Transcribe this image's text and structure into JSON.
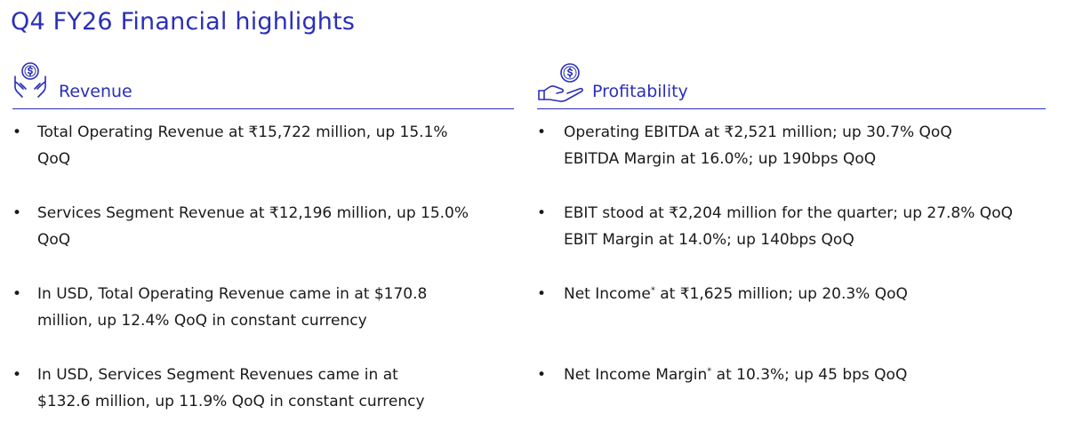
{
  "page_title": "Q4 FY26 Financial highlights",
  "revenue": {
    "icon": "money-hands-icon",
    "heading": "Revenue",
    "items": [
      {
        "l1": "Total Operating Revenue at ₹15,722 million, up 15.1%",
        "l2": "QoQ"
      },
      {
        "l1": "Services Segment Revenue at ₹12,196 million, up 15.0%",
        "l2": "QoQ"
      },
      {
        "l1": "In USD, Total Operating Revenue came in at $170.8",
        "l2": "million, up 12.4% QoQ in constant currency"
      },
      {
        "l1": "In USD, Services Segment Revenues came in at",
        "l2": "$132.6 million, up 11.9% QoQ in constant currency"
      }
    ]
  },
  "profitability": {
    "icon": "hand-coin-icon",
    "heading": "Profitability",
    "items": [
      {
        "l1": "Operating EBITDA at ₹2,521 million; up 30.7% QoQ",
        "l2": "EBITDA Margin at 16.0%; up 190bps QoQ"
      },
      {
        "l1": "EBIT stood at ₹2,204 million for the quarter; up 27.8% QoQ",
        "l2": "EBIT Margin at 14.0%; up 140bps QoQ"
      },
      {
        "a": "Net Income",
        "star": "*",
        "b": " at ₹1,625 million; up 20.3% QoQ"
      },
      {
        "a": "Net Income Margin",
        "star": "*",
        "b": " at 10.3%; up 45 bps QoQ"
      }
    ]
  },
  "bullet_char": "•",
  "colors": {
    "accent": "#2a2fb8",
    "text": "#1a1a1a"
  }
}
